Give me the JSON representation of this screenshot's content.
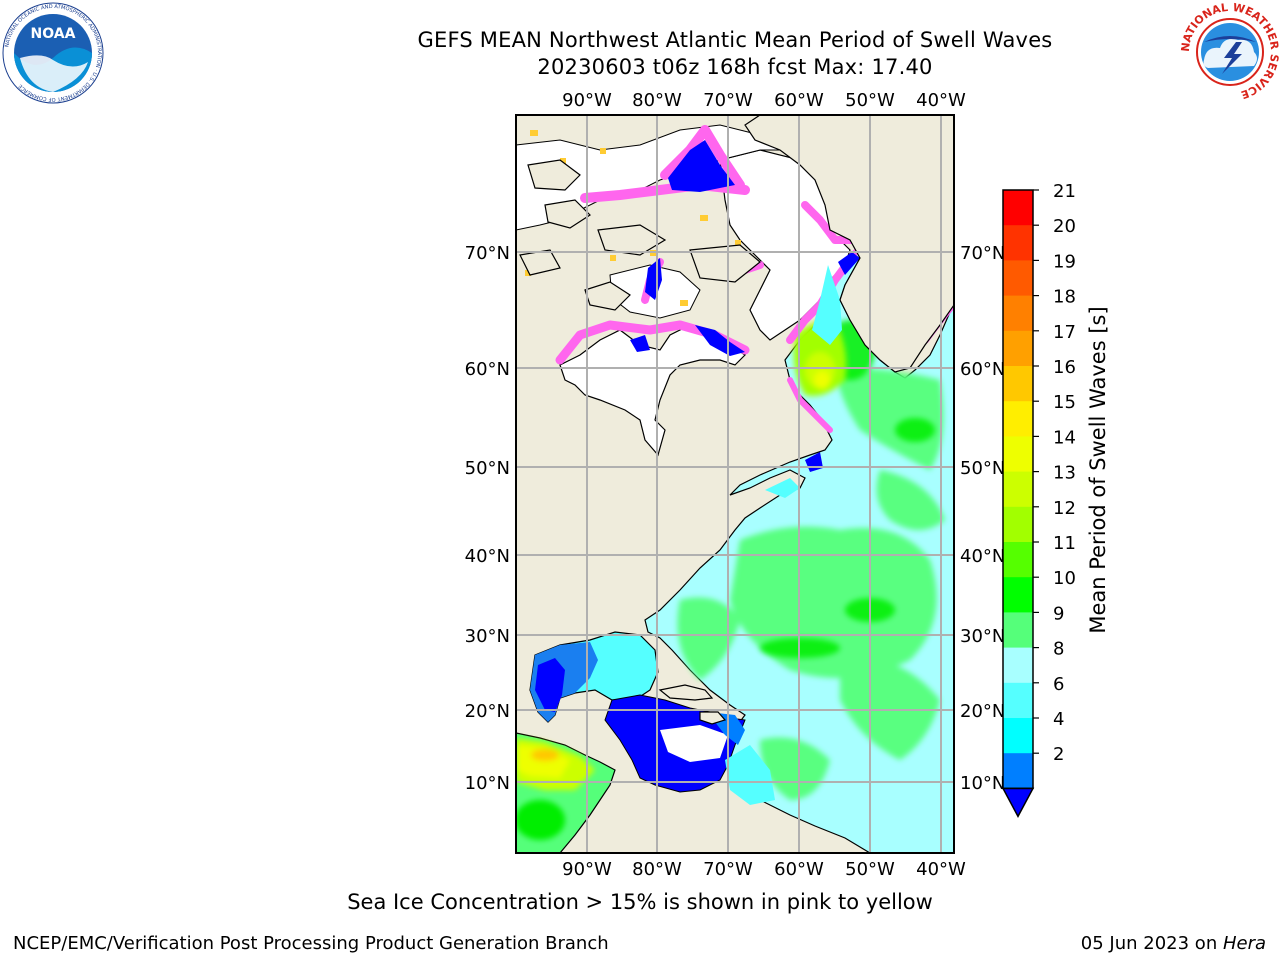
{
  "header": {
    "title_line1": "GEFS MEAN Northwest Atlantic Mean Period of Swell Waves",
    "title_line2": "20230603 t06z 168h fcst   Max: 17.40"
  },
  "logos": {
    "left": "NOAA",
    "left_ring_text": "NATIONAL OCEANIC AND ATMOSPHERIC ADMINISTRATION · U.S. DEPARTMENT OF COMMERCE",
    "right_ring_text": "NATIONAL WEATHER SERVICE"
  },
  "map": {
    "lon_labels": [
      "90°W",
      "80°W",
      "70°W",
      "60°W",
      "50°W",
      "40°W"
    ],
    "lat_labels": [
      "70°N",
      "60°N",
      "50°N",
      "40°N",
      "30°N",
      "20°N",
      "10°N"
    ],
    "colors": {
      "land": "#efecdc",
      "ice_free_white": "#ffffff",
      "grid": "#b0b0b0"
    }
  },
  "colorbar": {
    "label": "Mean Period of Swell Waves [s]",
    "ticks": [
      "21",
      "20",
      "19",
      "18",
      "17",
      "16",
      "15",
      "14",
      "13",
      "12",
      "11",
      "10",
      "9",
      "8",
      "6",
      "4",
      "2"
    ],
    "colors": [
      "#ff0000",
      "#ff3300",
      "#ff5a00",
      "#ff8000",
      "#ffa000",
      "#ffc800",
      "#ffee00",
      "#eeff00",
      "#ccff00",
      "#a2ff00",
      "#55ff00",
      "#00ff00",
      "#55ff7a",
      "#a8ffff",
      "#55ffff",
      "#00ffff",
      "#007fff",
      "#0000ff"
    ]
  },
  "footer": {
    "note": "Sea Ice Concentration > 15% is shown in pink to yellow",
    "credit": "NCEP/EMC/Verification Post Processing Product Generation Branch",
    "date_prefix": "05 Jun 2023 on ",
    "host": "Hera"
  }
}
